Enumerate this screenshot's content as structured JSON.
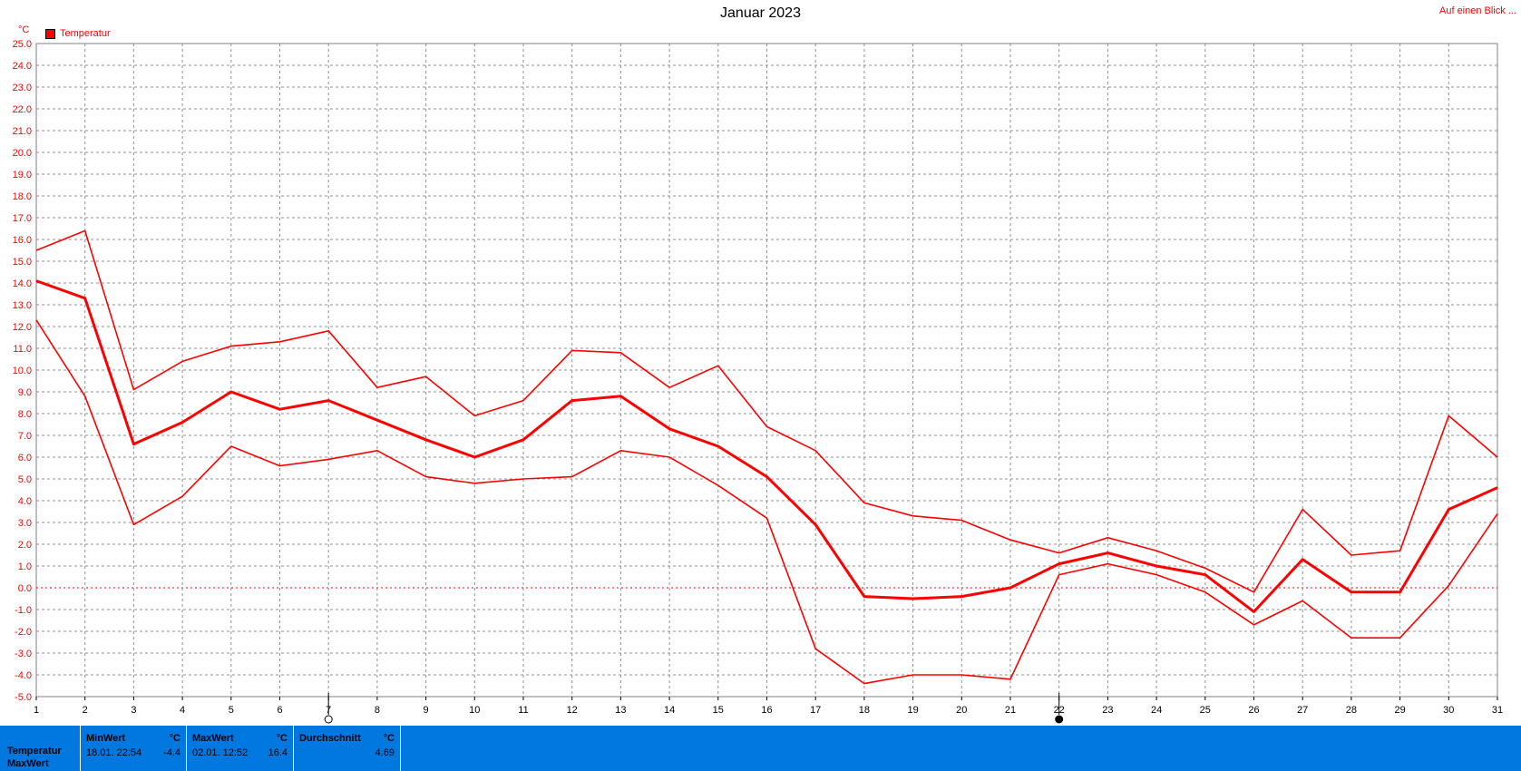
{
  "title": "Januar 2023",
  "top_link": "Auf einen Blick ...",
  "unit_label": "°C",
  "legend_label": "Temperatur",
  "colors": {
    "series": "#ff0000",
    "footer": "#0078e0"
  },
  "chart_data": {
    "type": "line",
    "x": [
      1,
      2,
      3,
      4,
      5,
      6,
      7,
      8,
      9,
      10,
      11,
      12,
      13,
      14,
      15,
      16,
      17,
      18,
      19,
      20,
      21,
      22,
      23,
      24,
      25,
      26,
      27,
      28,
      29,
      30,
      31
    ],
    "ylim": [
      -5.0,
      25.0
    ],
    "xlim": [
      1,
      31
    ],
    "ytick_labels": [
      "-5.0",
      "-4.0",
      "-3.0",
      "-2.0",
      "-1.0",
      "0.0",
      "1.0",
      "2.0",
      "3.0",
      "4.0",
      "5.0",
      "6.0",
      "7.0",
      "8.0",
      "9.0",
      "10.0",
      "11.0",
      "12.0",
      "13.0",
      "14.0",
      "15.0",
      "16.0",
      "17.0",
      "18.0",
      "19.0",
      "20.0",
      "21.0",
      "22.0",
      "23.0",
      "24.0",
      "25.0"
    ],
    "xtick_labels": [
      "1",
      "2",
      "3",
      "4",
      "5",
      "6",
      "7",
      "8",
      "9",
      "10",
      "11",
      "12",
      "13",
      "14",
      "15",
      "16",
      "17",
      "18",
      "19",
      "20",
      "21",
      "22",
      "23",
      "24",
      "25",
      "26",
      "27",
      "28",
      "29",
      "30",
      "31"
    ],
    "grid": true,
    "legend": "top-left",
    "series": [
      {
        "name": "Temperatur",
        "values": [
          14.1,
          13.3,
          6.6,
          7.6,
          9.0,
          8.2,
          8.6,
          7.7,
          6.8,
          6.0,
          6.8,
          8.6,
          8.8,
          7.3,
          6.5,
          5.1,
          2.9,
          -0.4,
          -0.5,
          -0.4,
          0.0,
          1.1,
          1.6,
          1.0,
          0.6,
          -1.1,
          1.3,
          -0.2,
          -0.2,
          3.6,
          4.6
        ]
      },
      {
        "values": [
          15.5,
          16.4,
          9.1,
          10.4,
          11.1,
          11.3,
          11.8,
          9.2,
          9.7,
          7.9,
          8.6,
          10.9,
          10.8,
          9.2,
          10.2,
          7.4,
          6.3,
          3.9,
          3.3,
          3.1,
          2.2,
          1.6,
          2.3,
          1.7,
          0.9,
          -0.2,
          3.6,
          1.5,
          1.7,
          7.9,
          6.0
        ]
      },
      {
        "values": [
          12.3,
          8.8,
          2.9,
          4.2,
          6.5,
          5.6,
          5.9,
          6.3,
          5.1,
          4.8,
          5.0,
          5.1,
          6.3,
          6.0,
          4.7,
          3.2,
          -2.8,
          -4.4,
          -4.0,
          -4.0,
          -4.2,
          0.6,
          1.1,
          0.6,
          -0.2,
          -1.7,
          -0.6,
          -2.3,
          -2.3,
          0.1,
          3.4
        ]
      }
    ]
  },
  "footer": {
    "row_labels": [
      "Temperatur",
      "MaxWert"
    ],
    "min": {
      "header": "MinWert",
      "unit": "°C",
      "when": "18.01.  22:54",
      "value": "-4.4"
    },
    "max": {
      "header": "MaxWert",
      "unit": "°C",
      "when": "02.01.  12:52",
      "value": "16.4"
    },
    "avg": {
      "header": "Durchschnitt",
      "unit": "°C",
      "value": "4.69"
    }
  }
}
